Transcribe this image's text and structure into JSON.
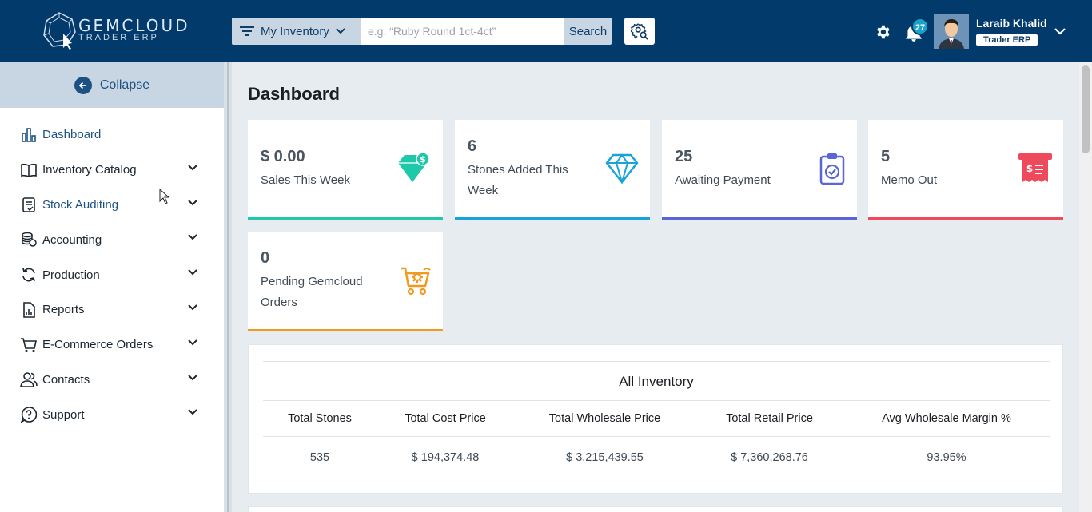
{
  "header": {
    "brand": "GEMCLOUD",
    "brand_sub": "TRADER ERP",
    "filter_label": "My Inventory",
    "search_placeholder": "e.g. “Ruby Round 1ct-4ct”",
    "search_button": "Search",
    "notification_count": "27",
    "user_name": "Laraib Khalid",
    "user_role": "Trader ERP"
  },
  "sidebar": {
    "collapse_label": "Collapse",
    "items": [
      {
        "label": "Dashboard",
        "icon": "chart-bar-icon"
      },
      {
        "label": "Inventory Catalog",
        "icon": "book-icon"
      },
      {
        "label": "Stock Auditing",
        "icon": "clipboard-check-icon"
      },
      {
        "label": "Accounting",
        "icon": "coins-icon"
      },
      {
        "label": "Production",
        "icon": "sync-icon"
      },
      {
        "label": "Reports",
        "icon": "report-icon"
      },
      {
        "label": "E-Commerce Orders",
        "icon": "cart-icon"
      },
      {
        "label": "Contacts",
        "icon": "users-icon"
      },
      {
        "label": "Support",
        "icon": "question-icon"
      }
    ]
  },
  "main": {
    "title": "Dashboard",
    "cards": [
      {
        "value": "$ 0.00",
        "label": "Sales This Week",
        "color": "#1fc8a9"
      },
      {
        "value": "6",
        "label": "Stones Added This Week",
        "color": "#1aa3d9"
      },
      {
        "value": "25",
        "label": "Awaiting Payment",
        "color": "#5a66d6"
      },
      {
        "value": "5",
        "label": "Memo Out",
        "color": "#ee4a5c"
      },
      {
        "value": "0",
        "label": "Pending Gemcloud Orders",
        "color": "#f29a1f"
      }
    ],
    "inventory": {
      "title": "All Inventory",
      "headers": [
        "Total Stones",
        "Total Cost Price",
        "Total Wholesale Price",
        "Total Retail Price",
        "Avg Wholesale Margin %"
      ],
      "values": [
        "535",
        "$ 194,374.48",
        "$ 3,215,439.55",
        "$ 7,360,268.76",
        "93.95%"
      ]
    }
  }
}
